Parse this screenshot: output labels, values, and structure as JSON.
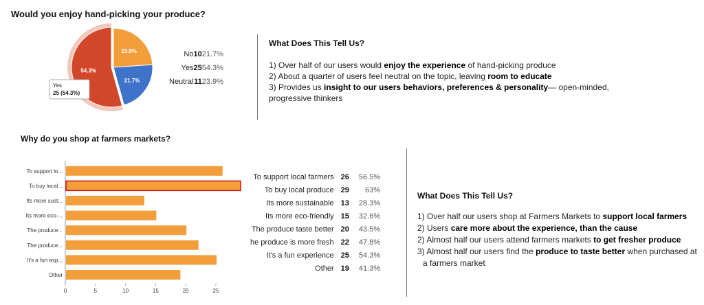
{
  "q1": {
    "title": "Would you enjoy hand-picking your produce?",
    "tooltip": {
      "label": "Yes",
      "value": "25 (54.3%)"
    },
    "stats": [
      {
        "label": "No",
        "count": "10",
        "pct": "21.7%"
      },
      {
        "label": "Yes",
        "count": "25",
        "pct": "54.3%"
      },
      {
        "label": "Neutral",
        "count": "11",
        "pct": "23.9%"
      }
    ],
    "summary": {
      "heading": "What Does This Tell Us?",
      "l1a": "1) Over half of our users would ",
      "l1b": "enjoy the experience",
      "l1c": " of hand-picking produce",
      "l2a": "2)  About a quarter of users feel neutral on the topic, leaving ",
      "l2b": "room to educate",
      "l3a": "3)  Provides us ",
      "l3b": "insight to our users behaviors, preferences & personality",
      "l3c": "— open-minded,",
      "l4": "progressive thinkers"
    }
  },
  "q2": {
    "title": "Why do you shop at farmers markets?",
    "stats": [
      {
        "label": "To support local farmers",
        "count": "26",
        "pct": "56.5%"
      },
      {
        "label": "To buy local produce",
        "count": "29",
        "pct": "63%"
      },
      {
        "label": "Its more sustainable",
        "count": "13",
        "pct": "28.3%"
      },
      {
        "label": "Its more eco-friendly",
        "count": "15",
        "pct": "32.6%"
      },
      {
        "label": "The produce taste better",
        "count": "20",
        "pct": "43.5%"
      },
      {
        "label": "he produce is more fresh",
        "count": "22",
        "pct": "47.8%"
      },
      {
        "label": "It's a fun experience",
        "count": "25",
        "pct": "54.3%"
      },
      {
        "label": "Other",
        "count": "19",
        "pct": "41.3%"
      }
    ],
    "summary": {
      "heading": "What Does This Tell Us?",
      "l1a": "1) Over half our users shop at Farmers Markets to ",
      "l1b": "support local farmers",
      "l2a": "2) Users ",
      "l2b": "care more about the experience, than the cause",
      "l3a": "2) Almost half our users attend farmers markets ",
      "l3b": "to get fresher produce",
      "l4a": "3) Almost half our users find the ",
      "l4b": "produce to taste better",
      "l4c": " when purchased at",
      "l5": "a farmers market"
    }
  },
  "chart_data": [
    {
      "type": "pie",
      "title": "Would you enjoy hand-picking your produce?",
      "categories": [
        "Yes",
        "Neutral",
        "No"
      ],
      "values": [
        25,
        11,
        10
      ],
      "labels": [
        "54.3%",
        "23.9%",
        "21.7%"
      ],
      "colors": [
        "#d2472a",
        "#f29e3b",
        "#3f73c9"
      ],
      "highlighted": "Yes"
    },
    {
      "type": "bar",
      "orientation": "horizontal",
      "title": "Why do you shop at farmers markets?",
      "categories": [
        "To support lo...",
        "To buy local...",
        "Its more sust...",
        "Its more eco-...",
        "The produce...",
        "The produce...",
        "It's a fun exp...",
        "Other"
      ],
      "values": [
        26,
        29,
        13,
        15,
        20,
        22,
        25,
        19
      ],
      "xlim": [
        0,
        29
      ],
      "xticks": [
        "0",
        "5",
        "10",
        "15",
        "20",
        "25"
      ],
      "highlighted_index": 1,
      "color": "#f29e3b",
      "highlight_stroke": "#c8161d"
    }
  ]
}
